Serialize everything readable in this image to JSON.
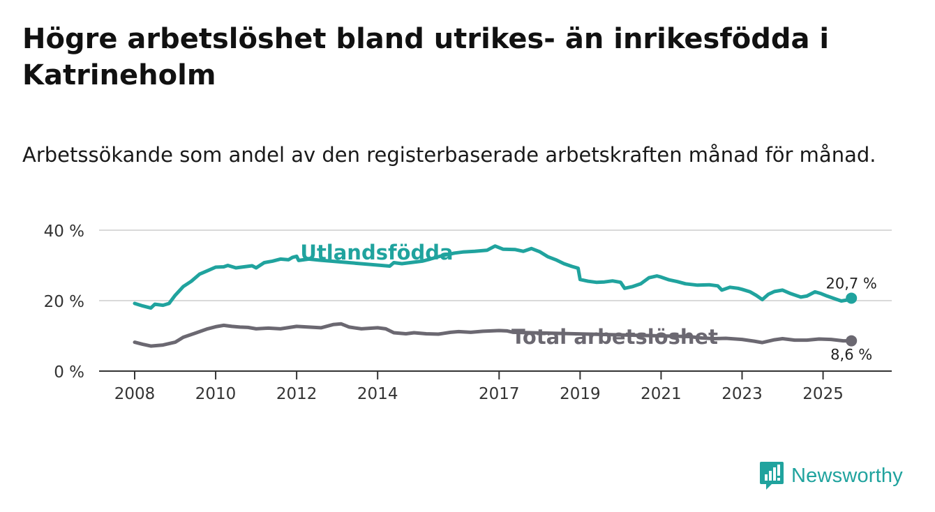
{
  "title": "Högre arbetslöshet bland utrikes- än inrikesfödda i Katrineholm",
  "subtitle": "Arbetssökande som andel av den registerbaserade arbetskraften månad för månad.",
  "brand": {
    "name": "Newsworthy",
    "icon": "bar-chart-speech-icon"
  },
  "colors": {
    "utlandsfodda": "#20a39e",
    "total": "#6b6871",
    "grid": "#d9d9d9",
    "axis": "#333333"
  },
  "chart_data": {
    "type": "line",
    "ylim": [
      0,
      40
    ],
    "yticks": [
      0,
      20,
      40
    ],
    "ytick_labels": [
      "0 %",
      "20 %",
      "40 %"
    ],
    "xlim": [
      2008,
      2025.8
    ],
    "xticks": [
      2008,
      2010,
      2012,
      2014,
      2017,
      2019,
      2021,
      2023,
      2025
    ],
    "xtick_labels": [
      "2008",
      "2010",
      "2012",
      "2014",
      "2017",
      "2019",
      "2021",
      "2023",
      "2025"
    ],
    "series": [
      {
        "name": "Utlandsfödda",
        "key": "utlandsfodda",
        "end_label": "20,7 %",
        "points": [
          [
            2008.0,
            19.2
          ],
          [
            2008.2,
            18.5
          ],
          [
            2008.4,
            17.9
          ],
          [
            2008.5,
            19.0
          ],
          [
            2008.7,
            18.7
          ],
          [
            2008.85,
            19.2
          ],
          [
            2009.0,
            21.5
          ],
          [
            2009.2,
            24.0
          ],
          [
            2009.4,
            25.5
          ],
          [
            2009.6,
            27.5
          ],
          [
            2009.8,
            28.5
          ],
          [
            2010.0,
            29.5
          ],
          [
            2010.2,
            29.6
          ],
          [
            2010.3,
            30.0
          ],
          [
            2010.5,
            29.3
          ],
          [
            2010.7,
            29.6
          ],
          [
            2010.9,
            29.9
          ],
          [
            2011.0,
            29.3
          ],
          [
            2011.2,
            30.8
          ],
          [
            2011.4,
            31.2
          ],
          [
            2011.6,
            31.8
          ],
          [
            2011.8,
            31.6
          ],
          [
            2011.9,
            32.3
          ],
          [
            2012.0,
            32.6
          ],
          [
            2012.05,
            31.4
          ],
          [
            2012.3,
            31.8
          ],
          [
            2012.55,
            31.5
          ],
          [
            2014.3,
            29.8
          ],
          [
            2014.4,
            30.8
          ],
          [
            2014.6,
            30.5
          ],
          [
            2015.1,
            31.2
          ],
          [
            2015.3,
            31.8
          ],
          [
            2015.6,
            32.8
          ],
          [
            2015.9,
            33.5
          ],
          [
            2016.1,
            33.8
          ],
          [
            2016.4,
            34.0
          ],
          [
            2016.7,
            34.3
          ],
          [
            2016.9,
            35.5
          ],
          [
            2017.1,
            34.6
          ],
          [
            2017.4,
            34.5
          ],
          [
            2017.6,
            34.0
          ],
          [
            2017.8,
            34.8
          ],
          [
            2018.0,
            33.9
          ],
          [
            2018.2,
            32.5
          ],
          [
            2018.4,
            31.6
          ],
          [
            2018.6,
            30.5
          ],
          [
            2018.8,
            29.7
          ],
          [
            2018.95,
            29.2
          ],
          [
            2019.0,
            26.0
          ],
          [
            2019.2,
            25.5
          ],
          [
            2019.4,
            25.2
          ],
          [
            2019.6,
            25.3
          ],
          [
            2019.8,
            25.6
          ],
          [
            2020.0,
            25.2
          ],
          [
            2020.1,
            23.5
          ],
          [
            2020.3,
            24.0
          ],
          [
            2020.5,
            24.8
          ],
          [
            2020.7,
            26.5
          ],
          [
            2020.9,
            27.0
          ],
          [
            2021.0,
            26.7
          ],
          [
            2021.2,
            25.9
          ],
          [
            2021.4,
            25.4
          ],
          [
            2021.6,
            24.8
          ],
          [
            2021.9,
            24.4
          ],
          [
            2022.2,
            24.5
          ],
          [
            2022.4,
            24.2
          ],
          [
            2022.5,
            23.0
          ],
          [
            2022.7,
            23.8
          ],
          [
            2022.9,
            23.5
          ],
          [
            2023.0,
            23.2
          ],
          [
            2023.2,
            22.5
          ],
          [
            2023.35,
            21.5
          ],
          [
            2023.5,
            20.3
          ],
          [
            2023.65,
            21.8
          ],
          [
            2023.8,
            22.6
          ],
          [
            2024.0,
            23.0
          ],
          [
            2024.2,
            22.0
          ],
          [
            2024.45,
            21.0
          ],
          [
            2024.6,
            21.3
          ],
          [
            2024.8,
            22.5
          ],
          [
            2024.95,
            22.0
          ],
          [
            2025.1,
            21.3
          ],
          [
            2025.3,
            20.5
          ],
          [
            2025.45,
            19.9
          ],
          [
            2025.6,
            20.2
          ],
          [
            2025.7,
            20.7
          ]
        ]
      },
      {
        "name": "Total arbetslöshet",
        "key": "total",
        "end_label": "8,6 %",
        "points": [
          [
            2008.0,
            8.2
          ],
          [
            2008.2,
            7.6
          ],
          [
            2008.4,
            7.1
          ],
          [
            2008.7,
            7.4
          ],
          [
            2009.0,
            8.2
          ],
          [
            2009.2,
            9.6
          ],
          [
            2009.5,
            10.8
          ],
          [
            2009.8,
            12.0
          ],
          [
            2010.0,
            12.6
          ],
          [
            2010.2,
            13.0
          ],
          [
            2010.4,
            12.7
          ],
          [
            2010.6,
            12.5
          ],
          [
            2010.8,
            12.4
          ],
          [
            2011.0,
            12.0
          ],
          [
            2011.3,
            12.2
          ],
          [
            2011.6,
            12.0
          ],
          [
            2012.0,
            12.7
          ],
          [
            2012.3,
            12.5
          ],
          [
            2012.6,
            12.3
          ],
          [
            2012.9,
            13.2
          ],
          [
            2013.1,
            13.4
          ],
          [
            2013.3,
            12.5
          ],
          [
            2013.6,
            12.0
          ],
          [
            2014.0,
            12.3
          ],
          [
            2014.2,
            12.0
          ],
          [
            2014.4,
            10.9
          ],
          [
            2014.7,
            10.6
          ],
          [
            2014.9,
            10.9
          ],
          [
            2015.2,
            10.6
          ],
          [
            2015.5,
            10.5
          ],
          [
            2015.8,
            11.0
          ],
          [
            2016.0,
            11.2
          ],
          [
            2016.3,
            11.0
          ],
          [
            2016.6,
            11.3
          ],
          [
            2017.0,
            11.5
          ],
          [
            2017.2,
            11.4
          ],
          [
            2017.35,
            11.0
          ],
          [
            2021.7,
            9.8
          ],
          [
            2022.0,
            9.4
          ],
          [
            2022.3,
            9.2
          ],
          [
            2022.6,
            9.3
          ],
          [
            2023.0,
            9.0
          ],
          [
            2023.3,
            8.5
          ],
          [
            2023.5,
            8.1
          ],
          [
            2023.8,
            8.9
          ],
          [
            2024.0,
            9.2
          ],
          [
            2024.3,
            8.8
          ],
          [
            2024.6,
            8.8
          ],
          [
            2024.9,
            9.1
          ],
          [
            2025.2,
            9.0
          ],
          [
            2025.5,
            8.6
          ],
          [
            2025.7,
            8.6
          ]
        ]
      }
    ],
    "annotations": [
      {
        "series": "utlandsfodda",
        "text": "Utlandsfödda"
      },
      {
        "series": "total",
        "text": "Total arbetslöshet"
      }
    ]
  }
}
